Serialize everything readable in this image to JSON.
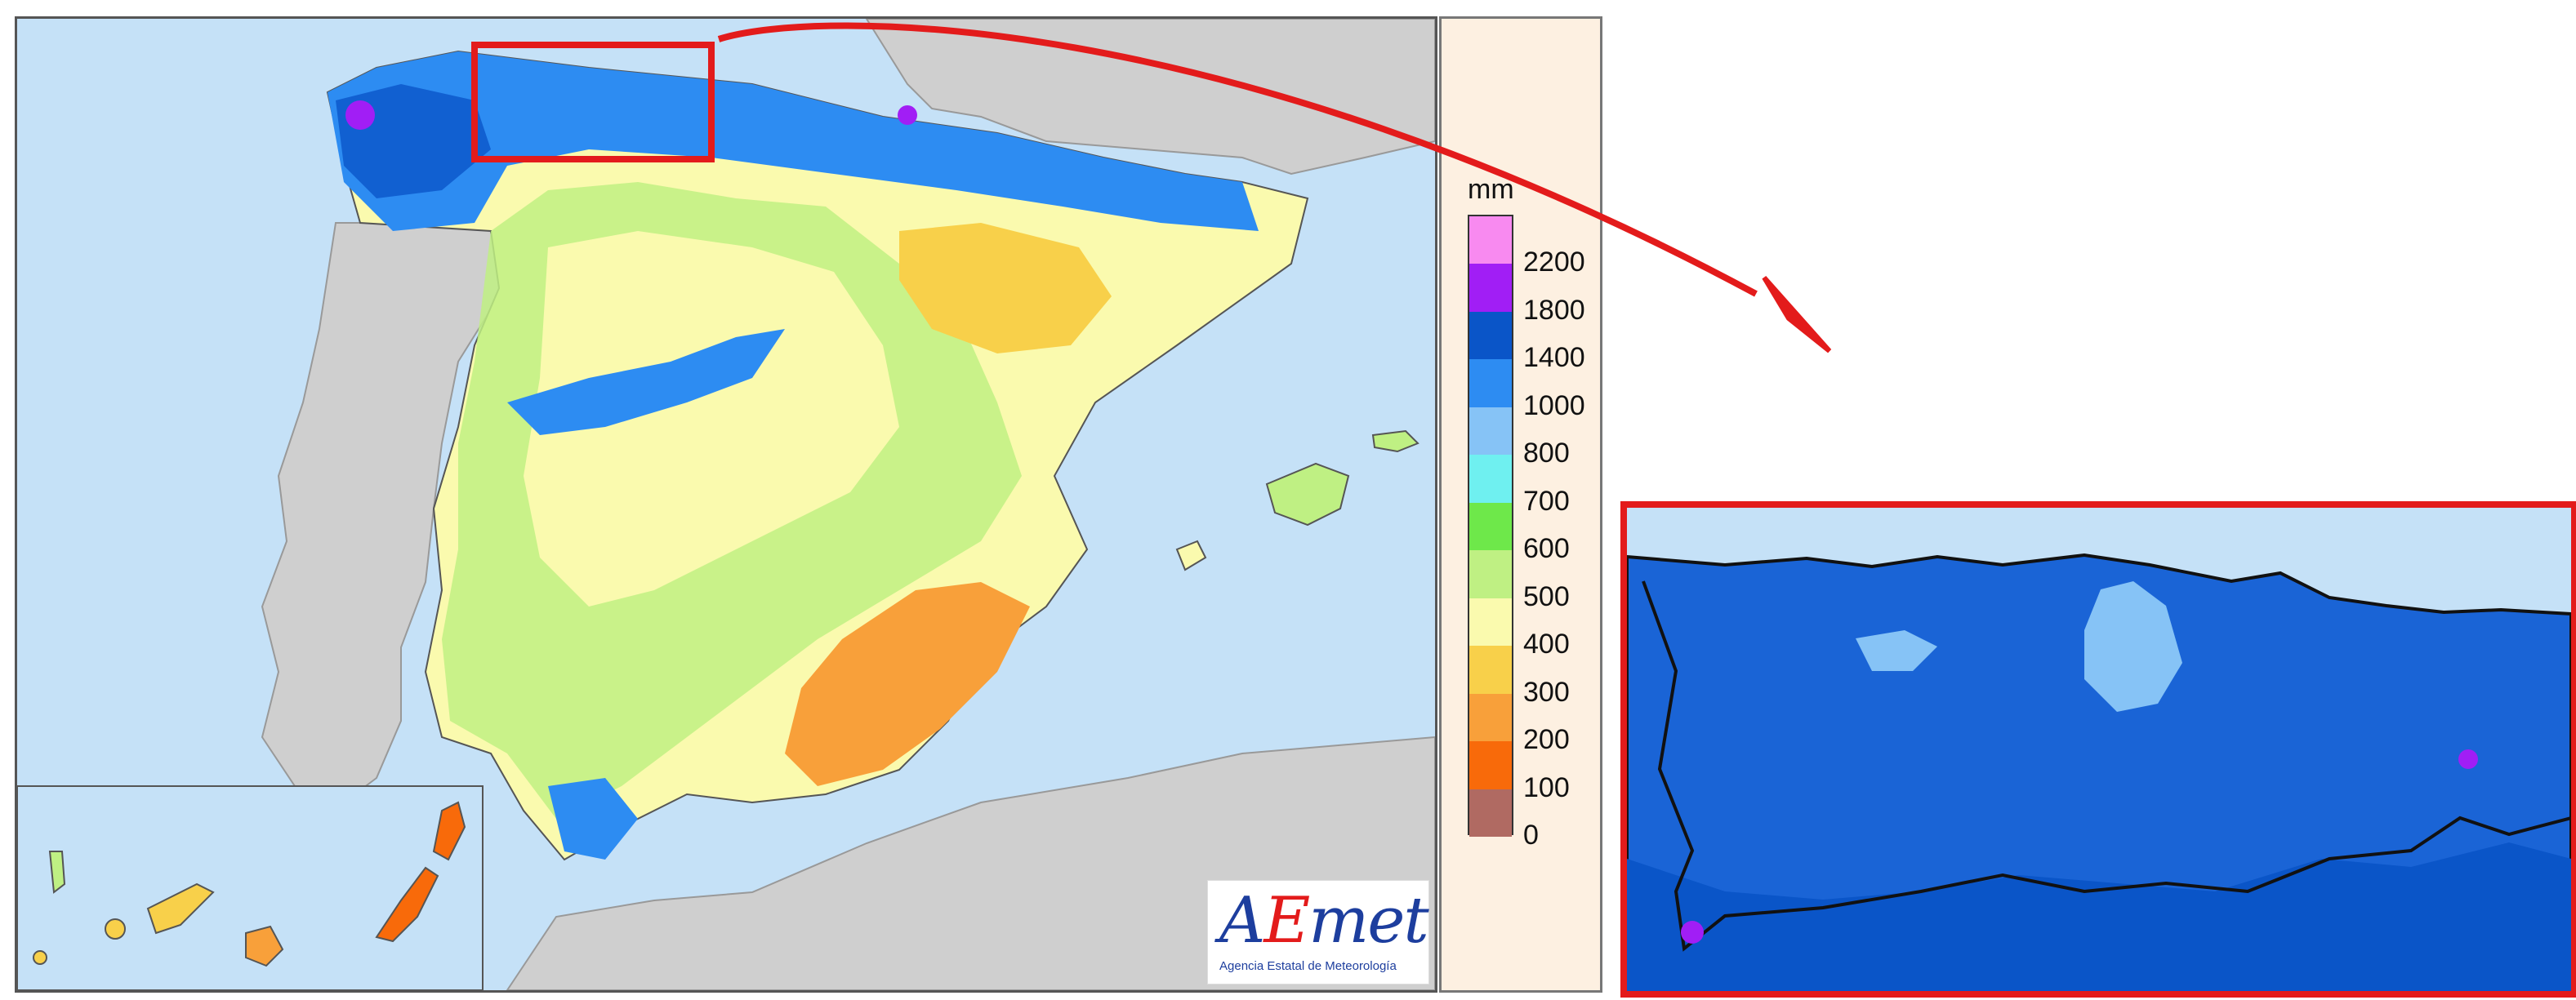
{
  "legend": {
    "unit": "mm",
    "ticks": [
      "2200",
      "1800",
      "1400",
      "1000",
      "800",
      "700",
      "600",
      "500",
      "400",
      "300",
      "200",
      "100",
      "0"
    ],
    "bins": [
      {
        "label": "> 2200",
        "color": "#f88af0"
      },
      {
        "label": "1800-2200",
        "color": "#a11ef5"
      },
      {
        "label": "1400-1800",
        "color": "#0a55c8"
      },
      {
        "label": "1000-1400",
        "color": "#2d8cf2"
      },
      {
        "label": "800-1000",
        "color": "#86c3f6"
      },
      {
        "label": "700-800",
        "color": "#6ff0f0"
      },
      {
        "label": "600-700",
        "color": "#6ee84a"
      },
      {
        "label": "500-600",
        "color": "#bff083"
      },
      {
        "label": "400-500",
        "color": "#fafaae"
      },
      {
        "label": "300-400",
        "color": "#f8d04a"
      },
      {
        "label": "200-300",
        "color": "#f8a03a"
      },
      {
        "label": "100-200",
        "color": "#f86a0a"
      },
      {
        "label": "0-100",
        "color": "#b06a62"
      }
    ]
  },
  "logo": {
    "a": "A",
    "e": "E",
    "met": "met",
    "subtitle": "Agencia Estatal de Meteorología"
  },
  "colors": {
    "highlight": "#e31b1b",
    "sea": "#c5e1f7",
    "foreign_land": "#cfcfcf"
  }
}
